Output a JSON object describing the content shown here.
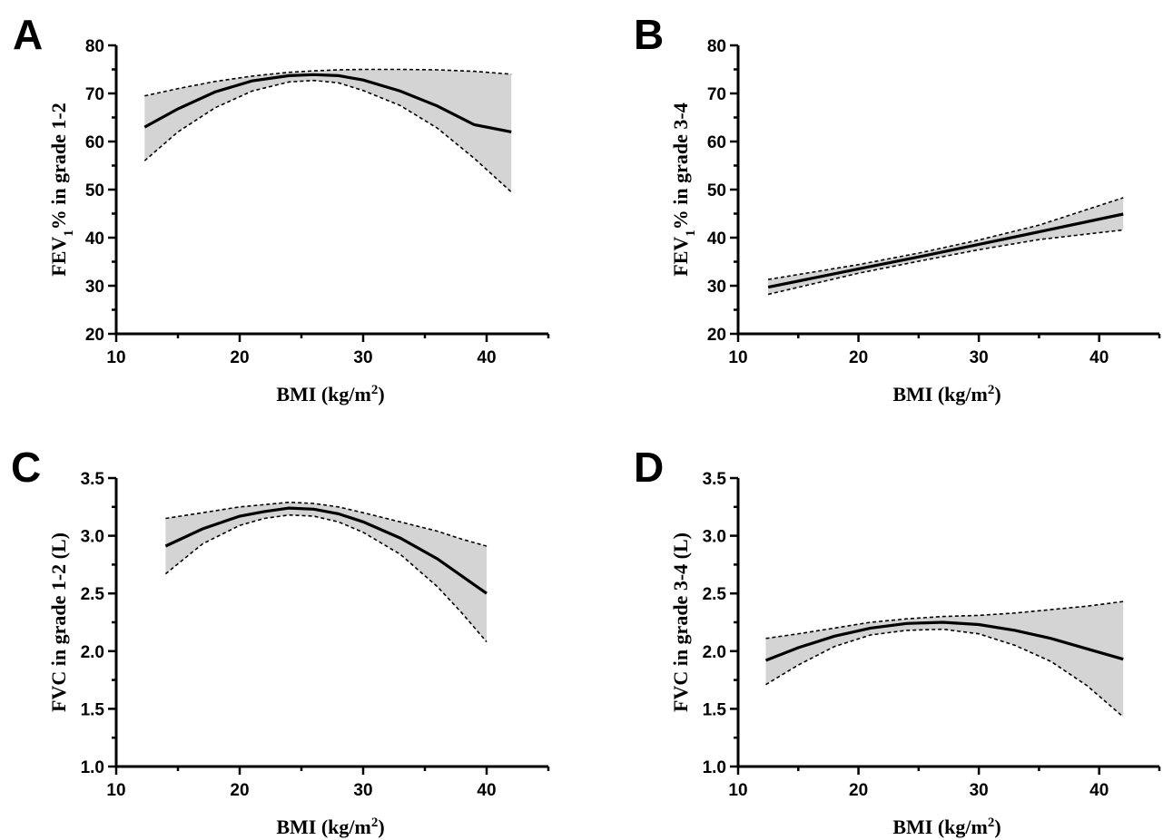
{
  "chart_data": [
    {
      "panel": "A",
      "type": "line",
      "xlabel": "BMI (kg/m²)",
      "ylabel": "FEV₁% in grade 1-2",
      "xlim": [
        10,
        45
      ],
      "ylim": [
        20,
        80
      ],
      "xticks": [
        10,
        20,
        30,
        40
      ],
      "yticks": [
        20,
        30,
        40,
        50,
        60,
        70,
        80
      ],
      "x": [
        12.3,
        15,
        18,
        21,
        24,
        26,
        28,
        30,
        33,
        36,
        39,
        42
      ],
      "series": [
        {
          "role": "fit",
          "values": [
            63.0,
            66.8,
            70.3,
            72.6,
            73.7,
            73.9,
            73.7,
            72.8,
            70.5,
            67.4,
            63.5,
            62.0
          ]
        },
        {
          "role": "upper",
          "values": [
            69.5,
            71.0,
            72.5,
            73.6,
            74.4,
            74.7,
            74.9,
            75.0,
            75.0,
            74.9,
            74.6,
            74.0
          ]
        },
        {
          "role": "lower",
          "values": [
            56.0,
            62.0,
            67.0,
            70.5,
            72.4,
            72.7,
            72.2,
            70.6,
            67.5,
            62.8,
            56.5,
            49.5
          ]
        }
      ]
    },
    {
      "panel": "B",
      "type": "line",
      "xlabel": "BMI (kg/m²)",
      "ylabel": "FEV₁% in grade 3-4",
      "xlim": [
        10,
        45
      ],
      "ylim": [
        20,
        80
      ],
      "xticks": [
        10,
        20,
        30,
        40
      ],
      "yticks": [
        20,
        30,
        40,
        50,
        60,
        70,
        80
      ],
      "x": [
        12.5,
        20,
        25,
        30,
        35,
        42
      ],
      "series": [
        {
          "role": "fit",
          "values": [
            29.7,
            33.5,
            36.0,
            38.6,
            41.2,
            44.9
          ]
        },
        {
          "role": "upper",
          "values": [
            31.3,
            34.4,
            36.8,
            39.5,
            42.6,
            48.3
          ]
        },
        {
          "role": "lower",
          "values": [
            28.2,
            32.6,
            35.1,
            37.5,
            39.6,
            41.6
          ]
        }
      ]
    },
    {
      "panel": "C",
      "type": "line",
      "xlabel": "BMI (kg/m²)",
      "ylabel": "FVC in grade 1-2 (L)",
      "xlim": [
        10,
        45
      ],
      "ylim": [
        1.0,
        3.5
      ],
      "xticks": [
        10,
        20,
        30,
        40
      ],
      "yticks": [
        1.0,
        1.5,
        2.0,
        2.5,
        3.0,
        3.5
      ],
      "x": [
        14,
        17,
        20,
        22,
        24,
        26,
        28,
        30,
        33,
        36,
        38,
        40
      ],
      "series": [
        {
          "role": "fit",
          "values": [
            2.91,
            3.06,
            3.17,
            3.21,
            3.24,
            3.23,
            3.19,
            3.12,
            2.98,
            2.8,
            2.65,
            2.5
          ]
        },
        {
          "role": "upper",
          "values": [
            3.15,
            3.2,
            3.25,
            3.27,
            3.29,
            3.28,
            3.25,
            3.2,
            3.12,
            3.04,
            2.97,
            2.91
          ]
        },
        {
          "role": "lower",
          "values": [
            2.67,
            2.93,
            3.09,
            3.15,
            3.18,
            3.17,
            3.12,
            3.03,
            2.84,
            2.56,
            2.33,
            2.08
          ]
        }
      ]
    },
    {
      "panel": "D",
      "type": "line",
      "xlabel": "BMI (kg/m²)",
      "ylabel": "FVC in grade 3-4 (L)",
      "xlim": [
        10,
        45
      ],
      "ylim": [
        1.0,
        3.5
      ],
      "xticks": [
        10,
        20,
        30,
        40
      ],
      "yticks": [
        1.0,
        1.5,
        2.0,
        2.5,
        3.0,
        3.5
      ],
      "x": [
        12.3,
        15,
        18,
        21,
        24,
        27,
        30,
        33,
        36,
        39,
        42
      ],
      "series": [
        {
          "role": "fit",
          "values": [
            1.92,
            2.03,
            2.13,
            2.2,
            2.24,
            2.25,
            2.23,
            2.18,
            2.11,
            2.02,
            1.93
          ]
        },
        {
          "role": "upper",
          "values": [
            2.11,
            2.15,
            2.2,
            2.25,
            2.28,
            2.3,
            2.31,
            2.33,
            2.36,
            2.39,
            2.43
          ]
        },
        {
          "role": "lower",
          "values": [
            1.71,
            1.88,
            2.04,
            2.14,
            2.18,
            2.19,
            2.15,
            2.05,
            1.91,
            1.7,
            1.43
          ]
        }
      ]
    }
  ]
}
